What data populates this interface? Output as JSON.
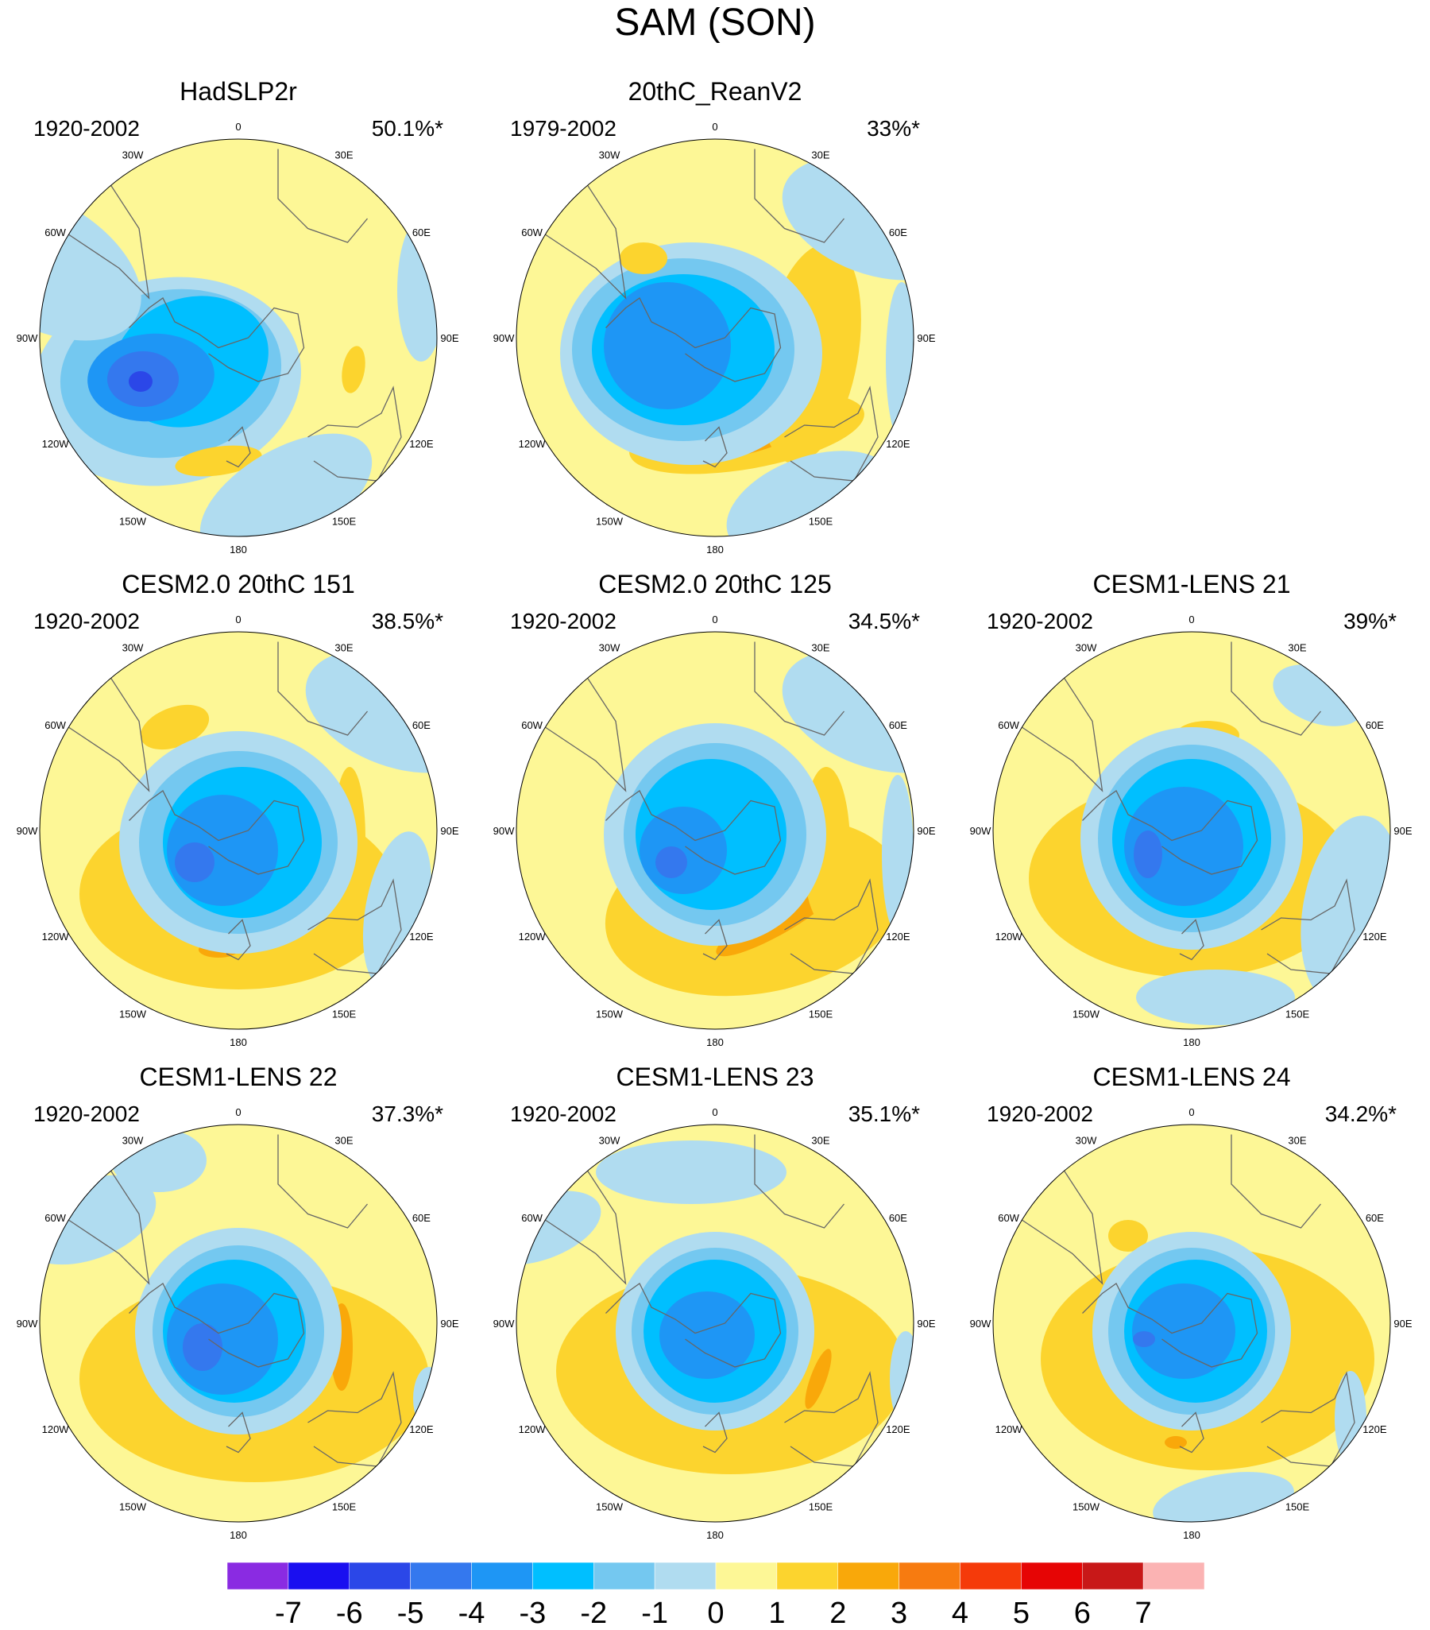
{
  "figure": {
    "title": "SAM (SON)"
  },
  "panels": [
    {
      "title": "HadSLP2r",
      "years": "1920-2002",
      "variance": "50.1%*"
    },
    {
      "title": "20thC_ReanV2",
      "years": "1979-2002",
      "variance": "33%*"
    },
    {
      "title": "CESM2.0 20thC 151",
      "years": "1920-2002",
      "variance": "38.5%*"
    },
    {
      "title": "CESM2.0 20thC 125",
      "years": "1920-2002",
      "variance": "34.5%*"
    },
    {
      "title": "CESM1-LENS 21",
      "years": "1920-2002",
      "variance": "39%*"
    },
    {
      "title": "CESM1-LENS 22",
      "years": "1920-2002",
      "variance": "37.3%*"
    },
    {
      "title": "CESM1-LENS 23",
      "years": "1920-2002",
      "variance": "35.1%*"
    },
    {
      "title": "CESM1-LENS 24",
      "years": "1920-2002",
      "variance": "34.2%*"
    }
  ],
  "longitude_labels": [
    "0",
    "30E",
    "60E",
    "90E",
    "120E",
    "150E",
    "180",
    "150W",
    "120W",
    "90W",
    "60W",
    "30W"
  ],
  "colorbar": {
    "labels": [
      "-7",
      "-6",
      "-5",
      "-4",
      "-3",
      "-2",
      "-1",
      "0",
      "1",
      "2",
      "3",
      "4",
      "5",
      "6",
      "7"
    ],
    "colors": [
      "#8a2be2",
      "#1a0ff0",
      "#2b47e8",
      "#3478ee",
      "#1e96f5",
      "#00bfff",
      "#74c8f0",
      "#b0dcf0",
      "#fdf796",
      "#fcd42e",
      "#f9a80a",
      "#f77b10",
      "#f53a0a",
      "#e60505",
      "#c81818",
      "#fbb3b3"
    ]
  }
}
